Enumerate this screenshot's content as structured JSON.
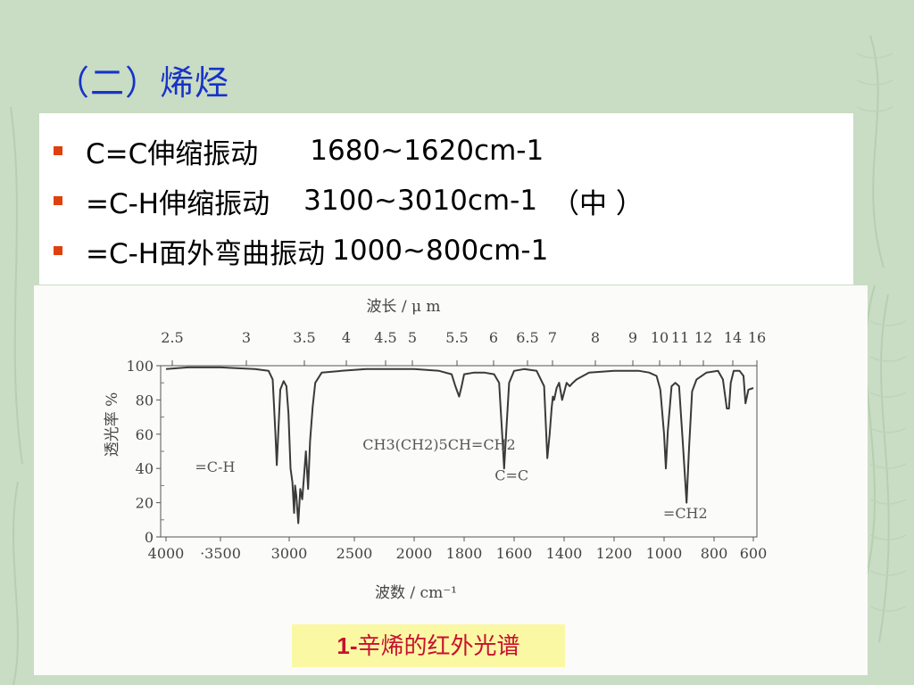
{
  "slide": {
    "title": "（二）烯烃",
    "bullets": [
      {
        "label": "C=C伸缩振动",
        "value": "1680~1620cm-1",
        "note": ""
      },
      {
        "label": "=C-H伸缩振动",
        "value": "3100~3010cm-1",
        "note": "（中 ）"
      },
      {
        "label": "=C-H面外弯曲振动",
        "value": "1000~800cm-1",
        "note": ""
      }
    ],
    "caption_prefix": "1-",
    "caption_text": "辛烯的红外光谱"
  },
  "colors": {
    "title": "#1733c8",
    "bullet_marker": "#e0400c",
    "caption_text": "#c8102e",
    "caption_bg": "#fbf8a4",
    "background": "#c9dcc4"
  },
  "chart_data": {
    "type": "line",
    "title": "",
    "top_axis_label": "波长 / μ m",
    "top_ticks": [
      "2.5",
      "3",
      "3.5",
      "4",
      "4.5",
      "5",
      "5.5",
      "6",
      "6.5",
      "7",
      "8",
      "9",
      "10",
      "11",
      "12",
      "14",
      "16"
    ],
    "xlabel": "波数 / cm⁻¹",
    "x_tick_labels": [
      "4000",
      "·3500",
      "3000",
      "2500",
      "2000",
      "1800",
      "1600",
      "1400",
      "1200",
      "1000",
      "800",
      "600"
    ],
    "ylabel": "透光率 %",
    "y_tick_labels": [
      "100",
      "80",
      "60",
      "40",
      "20",
      "0"
    ],
    "y_ticks": [
      100,
      80,
      60,
      40,
      20,
      0
    ],
    "ylim": [
      0,
      100
    ],
    "series": [
      {
        "name": "CH3(CH2)5CH=CH2",
        "points": [
          [
            4000,
            98
          ],
          [
            3800,
            99
          ],
          [
            3500,
            99
          ],
          [
            3250,
            98
          ],
          [
            3150,
            97
          ],
          [
            3120,
            92
          ],
          [
            3100,
            60
          ],
          [
            3090,
            42
          ],
          [
            3080,
            60
          ],
          [
            3065,
            86
          ],
          [
            3040,
            91
          ],
          [
            3020,
            88
          ],
          [
            3005,
            72
          ],
          [
            2990,
            40
          ],
          [
            2975,
            32
          ],
          [
            2962,
            14
          ],
          [
            2955,
            30
          ],
          [
            2945,
            24
          ],
          [
            2930,
            8
          ],
          [
            2915,
            28
          ],
          [
            2900,
            22
          ],
          [
            2890,
            32
          ],
          [
            2872,
            50
          ],
          [
            2855,
            28
          ],
          [
            2840,
            56
          ],
          [
            2820,
            76
          ],
          [
            2800,
            90
          ],
          [
            2750,
            96
          ],
          [
            2600,
            97
          ],
          [
            2400,
            98
          ],
          [
            2200,
            98
          ],
          [
            2000,
            98
          ],
          [
            1900,
            97
          ],
          [
            1850,
            95
          ],
          [
            1835,
            88
          ],
          [
            1820,
            82
          ],
          [
            1810,
            88
          ],
          [
            1800,
            95
          ],
          [
            1760,
            96
          ],
          [
            1720,
            96
          ],
          [
            1680,
            95
          ],
          [
            1660,
            90
          ],
          [
            1648,
            60
          ],
          [
            1640,
            40
          ],
          [
            1632,
            60
          ],
          [
            1620,
            90
          ],
          [
            1600,
            97
          ],
          [
            1560,
            98
          ],
          [
            1510,
            97
          ],
          [
            1480,
            88
          ],
          [
            1467,
            46
          ],
          [
            1458,
            60
          ],
          [
            1450,
            75
          ],
          [
            1445,
            82
          ],
          [
            1440,
            80
          ],
          [
            1430,
            87
          ],
          [
            1420,
            90
          ],
          [
            1408,
            80
          ],
          [
            1390,
            90
          ],
          [
            1378,
            88
          ],
          [
            1365,
            90
          ],
          [
            1350,
            92
          ],
          [
            1300,
            96
          ],
          [
            1200,
            97
          ],
          [
            1100,
            97
          ],
          [
            1060,
            96
          ],
          [
            1030,
            94
          ],
          [
            1015,
            86
          ],
          [
            1000,
            60
          ],
          [
            993,
            40
          ],
          [
            985,
            62
          ],
          [
            970,
            88
          ],
          [
            955,
            90
          ],
          [
            940,
            88
          ],
          [
            925,
            55
          ],
          [
            910,
            20
          ],
          [
            900,
            52
          ],
          [
            888,
            85
          ],
          [
            870,
            92
          ],
          [
            830,
            96
          ],
          [
            780,
            97
          ],
          [
            755,
            92
          ],
          [
            735,
            75
          ],
          [
            724,
            75
          ],
          [
            715,
            90
          ],
          [
            700,
            97
          ],
          [
            670,
            97
          ],
          [
            650,
            94
          ],
          [
            640,
            78
          ],
          [
            625,
            86
          ],
          [
            600,
            87
          ]
        ]
      }
    ],
    "annotations": [
      {
        "text": "CH3(CH2)5CH=CH2",
        "at_x": 1900,
        "at_y": 51
      },
      {
        "text": "=C-H",
        "at_x": 3550,
        "at_y": 38
      },
      {
        "text": "C=C",
        "at_x": 1610,
        "at_y": 33
      },
      {
        "text": "=CH2",
        "at_x": 915,
        "at_y": 11
      }
    ],
    "grid": true,
    "legend": "none"
  }
}
